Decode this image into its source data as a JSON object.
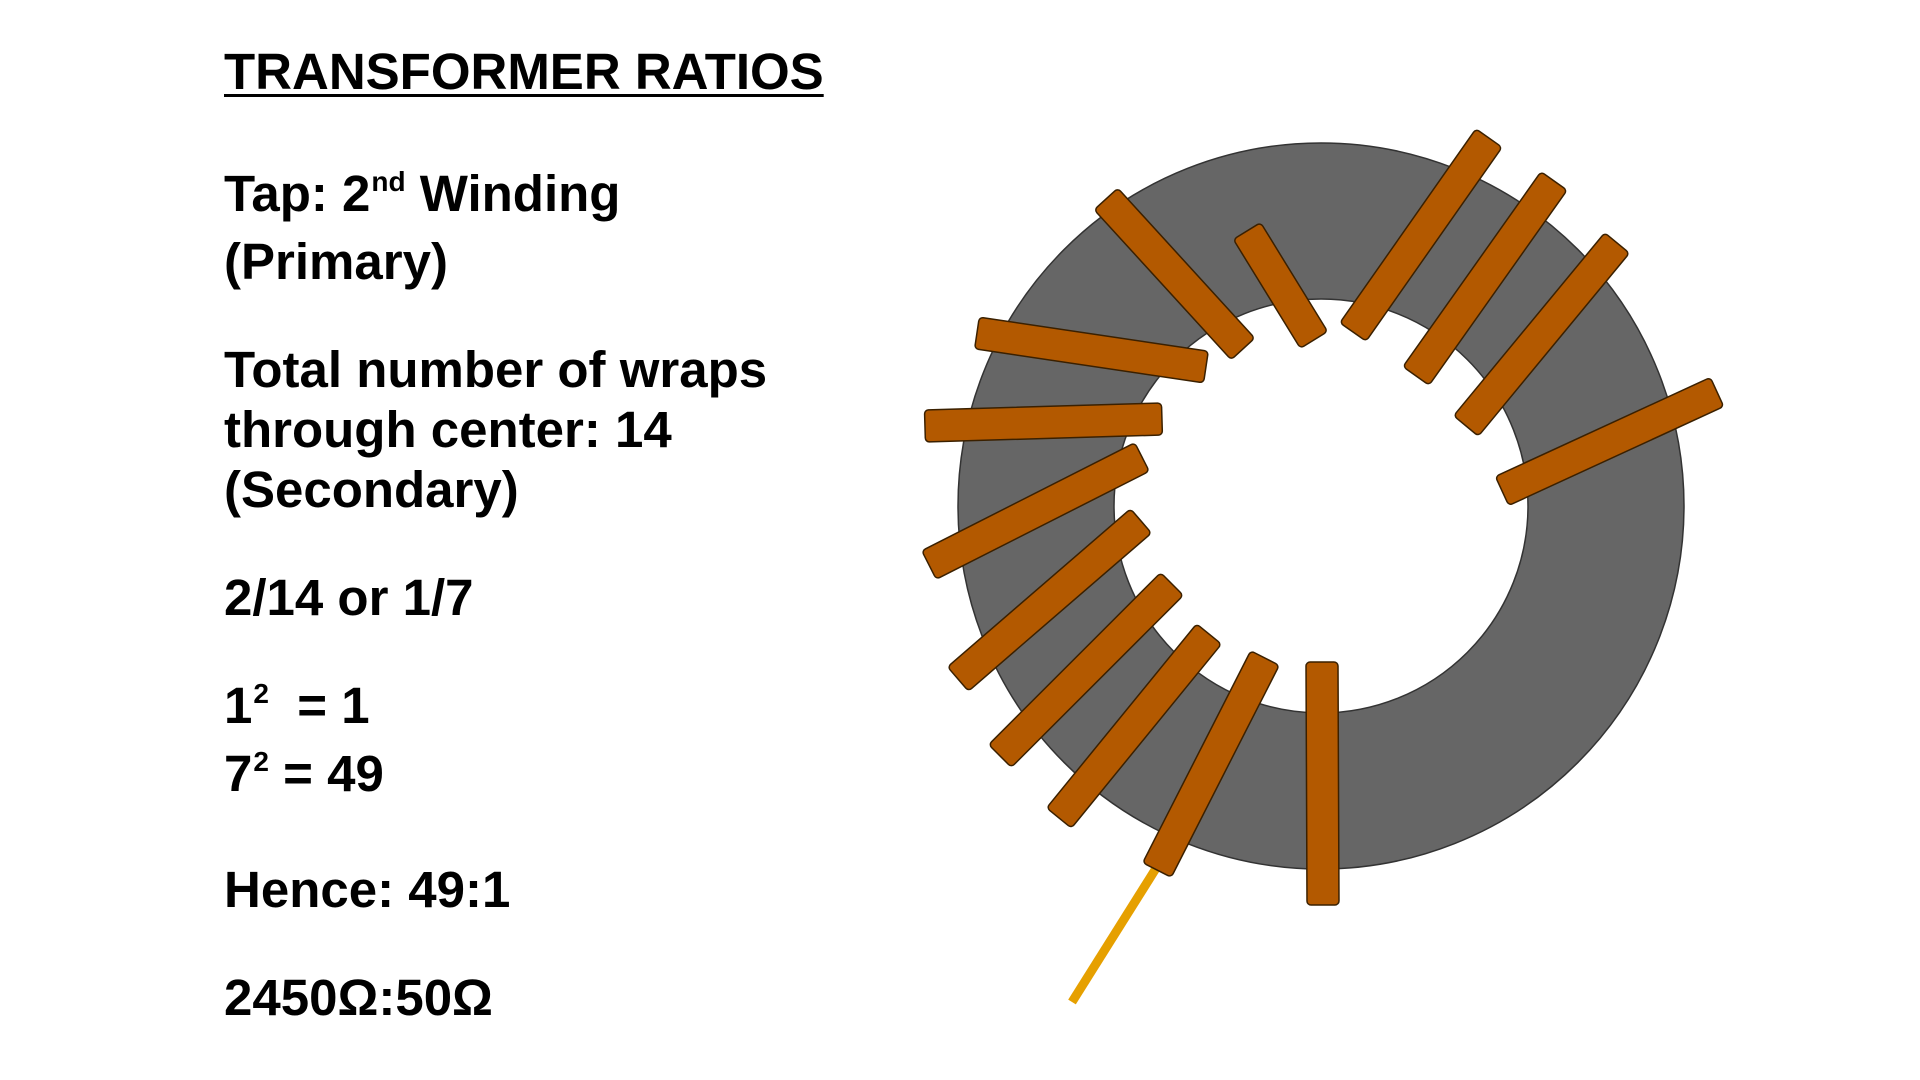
{
  "slide": {
    "title": "TRANSFORMER RATIOS",
    "tap": {
      "prefix": "Tap: 2",
      "superscript": "nd",
      "suffix": " Winding",
      "line2": "(Primary)"
    },
    "total": {
      "line1": "Total number of wraps",
      "line2": "through center: 14",
      "line3": "(Secondary)"
    },
    "ratio": "2/14 or 1/7",
    "squares": [
      {
        "base": "1",
        "exp": "2",
        "rest": "  = 1"
      },
      {
        "base": "7",
        "exp": "2",
        "rest": " = 49"
      }
    ],
    "hence": "Hence: 49:1",
    "impedance": "2450Ω:50Ω"
  },
  "diagram": {
    "core_color": "#666666",
    "winding_color": "#b35900",
    "lead_color": "#e6a000",
    "winding_count": 14
  }
}
